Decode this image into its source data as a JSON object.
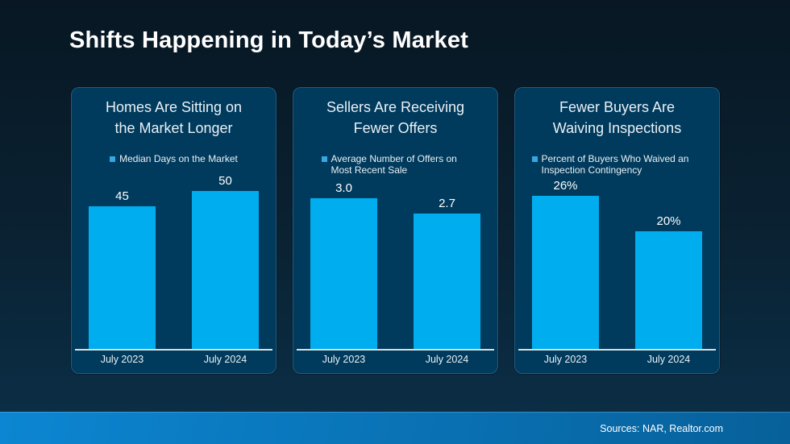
{
  "page": {
    "title": "Shifts Happening in Today’s Market",
    "footer_sources": "Sources: NAR, Realtor.com"
  },
  "colors": {
    "bar_fill": "#00AEEF",
    "legend_marker": "#35A8DF",
    "panel_background": "#003A5C",
    "axis_line": "#D9DEE2",
    "footer_gradient_left": "#0C86D2",
    "footer_gradient_right": "#07609A",
    "page_background_top": "#081723",
    "page_background_bottom": "#0B3049"
  },
  "chart_data": [
    {
      "type": "bar",
      "panel_title": "Homes Are Sitting on the Market Longer",
      "legend": "Median Days on the Market",
      "categories": [
        "July 2023",
        "July 2024"
      ],
      "values": [
        45,
        50
      ],
      "value_labels": [
        "45",
        "50"
      ],
      "ylim": [
        0,
        54
      ],
      "grid": false,
      "legend_position": "top"
    },
    {
      "type": "bar",
      "panel_title": "Sellers Are Receiving Fewer Offers",
      "legend": "Average Number of Offers on Most Recent Sale",
      "categories": [
        "July 2023",
        "July 2024"
      ],
      "values": [
        3.0,
        2.7
      ],
      "value_labels": [
        "3.0",
        "2.7"
      ],
      "ylim": [
        0,
        3.4
      ],
      "grid": false,
      "legend_position": "top"
    },
    {
      "type": "bar",
      "panel_title": "Fewer Buyers Are Waiving Inspections",
      "legend": "Percent of Buyers Who Waived an Inspection Contingency",
      "categories": [
        "July 2023",
        "July 2024"
      ],
      "values": [
        26,
        20
      ],
      "value_labels": [
        "26%",
        "20%"
      ],
      "ylim": [
        0,
        29
      ],
      "grid": false,
      "legend_position": "top"
    }
  ]
}
